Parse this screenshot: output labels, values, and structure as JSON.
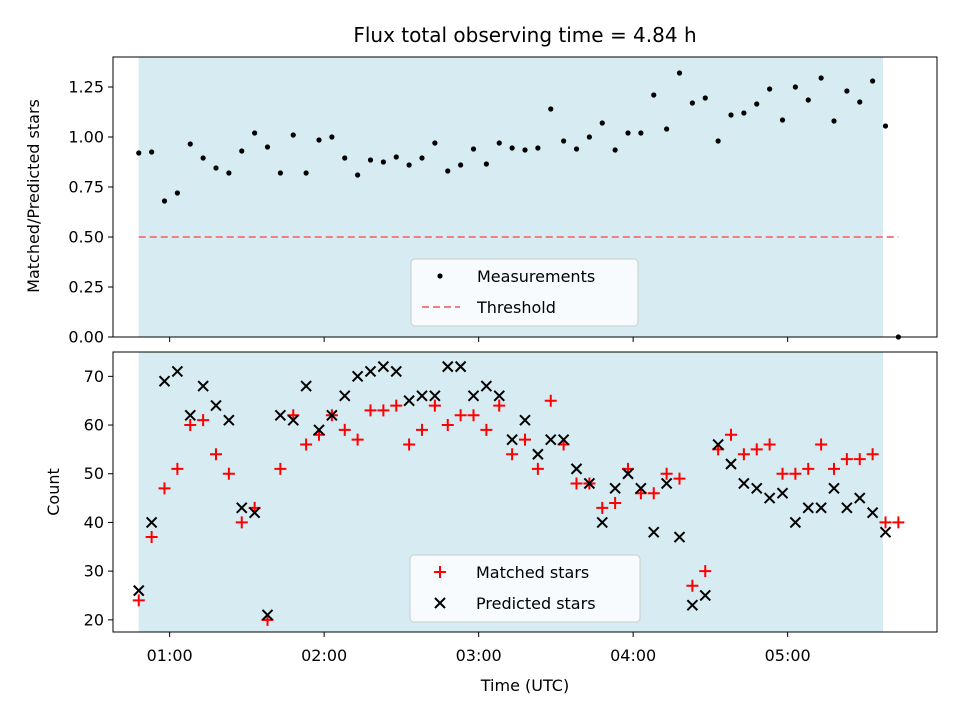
{
  "chart_data": [
    {
      "type": "scatter",
      "title": "Flux total observing time = 4.84 h",
      "xlabel": "",
      "ylabel": "Matched/Predicted stars",
      "ylim": [
        0,
        1.4
      ],
      "xlim": [
        "00:38",
        "05:58"
      ],
      "yticks": [
        "0.00",
        "0.25",
        "0.50",
        "0.75",
        "1.00",
        "1.25"
      ],
      "ytick_values": [
        0,
        0.25,
        0.5,
        0.75,
        1.0,
        1.25
      ],
      "legend": {
        "placement": "lower-center",
        "entries": [
          "Measurements",
          "Threshold"
        ]
      },
      "shaded_span": {
        "start": "00:48",
        "end": "05:37",
        "color": "#add8e6"
      },
      "threshold": {
        "value": 0.5,
        "start": "00:48",
        "end": "05:43",
        "color": "#f08080"
      },
      "series": [
        {
          "name": "Measurements",
          "marker": "dot",
          "color": "#000000",
          "points": [
            [
              "00:48",
              0.92
            ],
            [
              "00:53",
              0.925
            ],
            [
              "00:58",
              0.68
            ],
            [
              "01:03",
              0.72
            ],
            [
              "01:08",
              0.965
            ],
            [
              "01:13",
              0.895
            ],
            [
              "01:18",
              0.845
            ],
            [
              "01:23",
              0.82
            ],
            [
              "01:28",
              0.93
            ],
            [
              "01:33",
              1.02
            ],
            [
              "01:38",
              0.95
            ],
            [
              "01:43",
              0.82
            ],
            [
              "01:48",
              1.01
            ],
            [
              "01:53",
              0.82
            ],
            [
              "01:58",
              0.985
            ],
            [
              "02:03",
              1.0
            ],
            [
              "02:08",
              0.895
            ],
            [
              "02:13",
              0.81
            ],
            [
              "02:18",
              0.885
            ],
            [
              "02:23",
              0.875
            ],
            [
              "02:28",
              0.9
            ],
            [
              "02:33",
              0.86
            ],
            [
              "02:38",
              0.895
            ],
            [
              "02:43",
              0.97
            ],
            [
              "02:48",
              0.83
            ],
            [
              "02:53",
              0.86
            ],
            [
              "02:58",
              0.94
            ],
            [
              "03:03",
              0.865
            ],
            [
              "03:08",
              0.97
            ],
            [
              "03:13",
              0.945
            ],
            [
              "03:18",
              0.935
            ],
            [
              "03:23",
              0.945
            ],
            [
              "03:28",
              1.14
            ],
            [
              "03:33",
              0.98
            ],
            [
              "03:38",
              0.94
            ],
            [
              "03:43",
              1.0
            ],
            [
              "03:48",
              1.07
            ],
            [
              "03:53",
              0.935
            ],
            [
              "03:58",
              1.02
            ],
            [
              "04:03",
              1.02
            ],
            [
              "04:08",
              1.21
            ],
            [
              "04:13",
              1.04
            ],
            [
              "04:18",
              1.32
            ],
            [
              "04:23",
              1.17
            ],
            [
              "04:28",
              1.195
            ],
            [
              "04:33",
              0.98
            ],
            [
              "04:38",
              1.11
            ],
            [
              "04:43",
              1.12
            ],
            [
              "04:48",
              1.165
            ],
            [
              "04:53",
              1.24
            ],
            [
              "04:58",
              1.085
            ],
            [
              "05:03",
              1.25
            ],
            [
              "05:08",
              1.185
            ],
            [
              "05:13",
              1.295
            ],
            [
              "05:18",
              1.08
            ],
            [
              "05:23",
              1.23
            ],
            [
              "05:28",
              1.175
            ],
            [
              "05:33",
              1.28
            ],
            [
              "05:38",
              1.055
            ],
            [
              "05:43",
              0.0
            ]
          ]
        }
      ]
    },
    {
      "type": "scatter",
      "title": "",
      "xlabel": "Time (UTC)",
      "ylabel": "Count",
      "ylim": [
        17.5,
        75
      ],
      "xlim": [
        "00:38",
        "05:58"
      ],
      "xticks": [
        "01:00",
        "02:00",
        "03:00",
        "04:00",
        "05:00"
      ],
      "yticks": [
        "20",
        "30",
        "40",
        "50",
        "60",
        "70"
      ],
      "ytick_values": [
        20,
        30,
        40,
        50,
        60,
        70
      ],
      "legend": {
        "placement": "lower-center",
        "entries": [
          "Matched stars",
          "Predicted stars"
        ]
      },
      "shaded_span": {
        "start": "00:48",
        "end": "05:37",
        "color": "#add8e6"
      },
      "series": [
        {
          "name": "Matched stars",
          "marker": "plus",
          "color": "#ff0000",
          "points": [
            [
              "00:48",
              24
            ],
            [
              "00:53",
              37
            ],
            [
              "00:58",
              47
            ],
            [
              "01:03",
              51
            ],
            [
              "01:08",
              60
            ],
            [
              "01:13",
              61
            ],
            [
              "01:18",
              54
            ],
            [
              "01:23",
              50
            ],
            [
              "01:28",
              40
            ],
            [
              "01:33",
              43
            ],
            [
              "01:38",
              20
            ],
            [
              "01:43",
              51
            ],
            [
              "01:48",
              62
            ],
            [
              "01:53",
              56
            ],
            [
              "01:58",
              58
            ],
            [
              "02:03",
              62
            ],
            [
              "02:08",
              59
            ],
            [
              "02:13",
              57
            ],
            [
              "02:18",
              63
            ],
            [
              "02:23",
              63
            ],
            [
              "02:28",
              64
            ],
            [
              "02:33",
              56
            ],
            [
              "02:38",
              59
            ],
            [
              "02:43",
              64
            ],
            [
              "02:48",
              60
            ],
            [
              "02:53",
              62
            ],
            [
              "02:58",
              62
            ],
            [
              "03:03",
              59
            ],
            [
              "03:08",
              64
            ],
            [
              "03:13",
              54
            ],
            [
              "03:18",
              57
            ],
            [
              "03:23",
              51
            ],
            [
              "03:28",
              65
            ],
            [
              "03:33",
              56
            ],
            [
              "03:38",
              48
            ],
            [
              "03:43",
              48
            ],
            [
              "03:48",
              43
            ],
            [
              "03:53",
              44
            ],
            [
              "03:58",
              51
            ],
            [
              "04:03",
              46
            ],
            [
              "04:08",
              46
            ],
            [
              "04:13",
              50
            ],
            [
              "04:18",
              49
            ],
            [
              "04:23",
              27
            ],
            [
              "04:28",
              30
            ],
            [
              "04:33",
              55
            ],
            [
              "04:38",
              58
            ],
            [
              "04:43",
              54
            ],
            [
              "04:48",
              55
            ],
            [
              "04:53",
              56
            ],
            [
              "04:58",
              50
            ],
            [
              "05:03",
              50
            ],
            [
              "05:08",
              51
            ],
            [
              "05:13",
              56
            ],
            [
              "05:18",
              51
            ],
            [
              "05:23",
              53
            ],
            [
              "05:28",
              53
            ],
            [
              "05:33",
              54
            ],
            [
              "05:38",
              40
            ],
            [
              "05:43",
              40
            ]
          ]
        },
        {
          "name": "Predicted stars",
          "marker": "x",
          "color": "#000000",
          "points": [
            [
              "00:48",
              26
            ],
            [
              "00:53",
              40
            ],
            [
              "00:58",
              69
            ],
            [
              "01:03",
              71
            ],
            [
              "01:08",
              62
            ],
            [
              "01:13",
              68
            ],
            [
              "01:18",
              64
            ],
            [
              "01:23",
              61
            ],
            [
              "01:28",
              43
            ],
            [
              "01:33",
              42
            ],
            [
              "01:38",
              21
            ],
            [
              "01:43",
              62
            ],
            [
              "01:48",
              61
            ],
            [
              "01:53",
              68
            ],
            [
              "01:58",
              59
            ],
            [
              "02:03",
              62
            ],
            [
              "02:08",
              66
            ],
            [
              "02:13",
              70
            ],
            [
              "02:18",
              71
            ],
            [
              "02:23",
              72
            ],
            [
              "02:28",
              71
            ],
            [
              "02:33",
              65
            ],
            [
              "02:38",
              66
            ],
            [
              "02:43",
              66
            ],
            [
              "02:48",
              72
            ],
            [
              "02:53",
              72
            ],
            [
              "02:58",
              66
            ],
            [
              "03:03",
              68
            ],
            [
              "03:08",
              66
            ],
            [
              "03:13",
              57
            ],
            [
              "03:18",
              61
            ],
            [
              "03:23",
              54
            ],
            [
              "03:28",
              57
            ],
            [
              "03:33",
              57
            ],
            [
              "03:38",
              51
            ],
            [
              "03:43",
              48
            ],
            [
              "03:48",
              40
            ],
            [
              "03:53",
              47
            ],
            [
              "03:58",
              50
            ],
            [
              "04:03",
              47
            ],
            [
              "04:08",
              38
            ],
            [
              "04:13",
              48
            ],
            [
              "04:18",
              37
            ],
            [
              "04:23",
              23
            ],
            [
              "04:28",
              25
            ],
            [
              "04:33",
              56
            ],
            [
              "04:38",
              52
            ],
            [
              "04:43",
              48
            ],
            [
              "04:48",
              47
            ],
            [
              "04:53",
              45
            ],
            [
              "04:58",
              46
            ],
            [
              "05:03",
              40
            ],
            [
              "05:08",
              43
            ],
            [
              "05:13",
              43
            ],
            [
              "05:18",
              47
            ],
            [
              "05:23",
              43
            ],
            [
              "05:28",
              45
            ],
            [
              "05:33",
              42
            ],
            [
              "05:38",
              38
            ]
          ]
        }
      ]
    }
  ]
}
